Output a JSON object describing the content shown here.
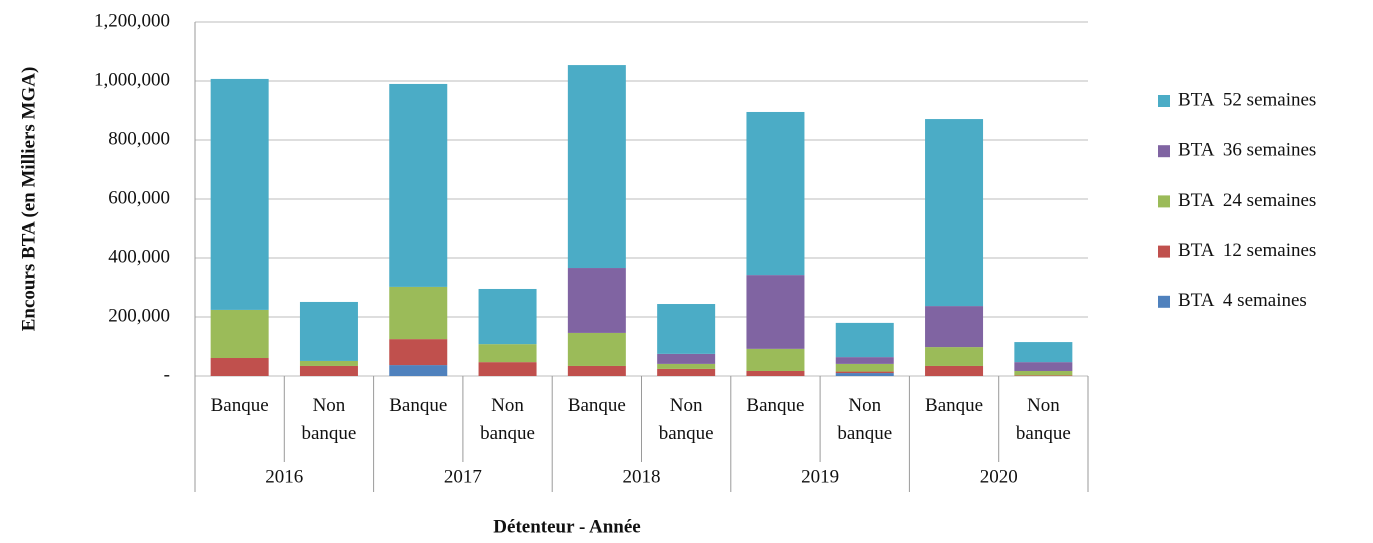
{
  "chart_data": {
    "type": "stacked_bar",
    "y_axis_label": "Encours BTA (en Milliers MGA)",
    "x_axis_label": "Détenteur - Année",
    "groups": [
      "2016",
      "2017",
      "2018",
      "2019",
      "2020"
    ],
    "categories": [
      "Banque",
      "Non banque",
      "Banque",
      "Non banque",
      "Banque",
      "Non banque",
      "Banque",
      "Non banque",
      "Banque",
      "Non banque"
    ],
    "series": [
      {
        "name": "BTA  4 semaines",
        "color": "#4f81bd",
        "values": [
          0,
          0,
          37000,
          0,
          0,
          0,
          0,
          10000,
          0,
          0
        ]
      },
      {
        "name": "BTA  12 semaines",
        "color": "#c0504d",
        "values": [
          61000,
          34000,
          88000,
          47000,
          34000,
          24000,
          17000,
          5000,
          34000,
          2000
        ]
      },
      {
        "name": "BTA  24 semaines",
        "color": "#9bbb59",
        "values": [
          163000,
          17000,
          177000,
          61000,
          112000,
          17000,
          75000,
          26000,
          64000,
          15000
        ]
      },
      {
        "name": "BTA  36 semaines",
        "color": "#8064a2",
        "values": [
          0,
          0,
          0,
          0,
          220000,
          34000,
          250000,
          23000,
          139000,
          30000
        ]
      },
      {
        "name": "BTA  52 semaines",
        "color": "#4bacc6",
        "values": [
          783000,
          200000,
          688000,
          187000,
          688000,
          169000,
          553000,
          116000,
          634000,
          68000
        ]
      }
    ],
    "ylim": [
      0,
      1200000
    ],
    "yticks": [
      {
        "value": 0,
        "label": "-"
      },
      {
        "value": 200000,
        "label": "200,000"
      },
      {
        "value": 400000,
        "label": "400,000"
      },
      {
        "value": 600000,
        "label": "600,000"
      },
      {
        "value": 800000,
        "label": "800,000"
      },
      {
        "value": 1000000,
        "label": "1,000,000"
      },
      {
        "value": 1200000,
        "label": "1,200,000"
      }
    ],
    "grid": true,
    "legend": "right"
  }
}
